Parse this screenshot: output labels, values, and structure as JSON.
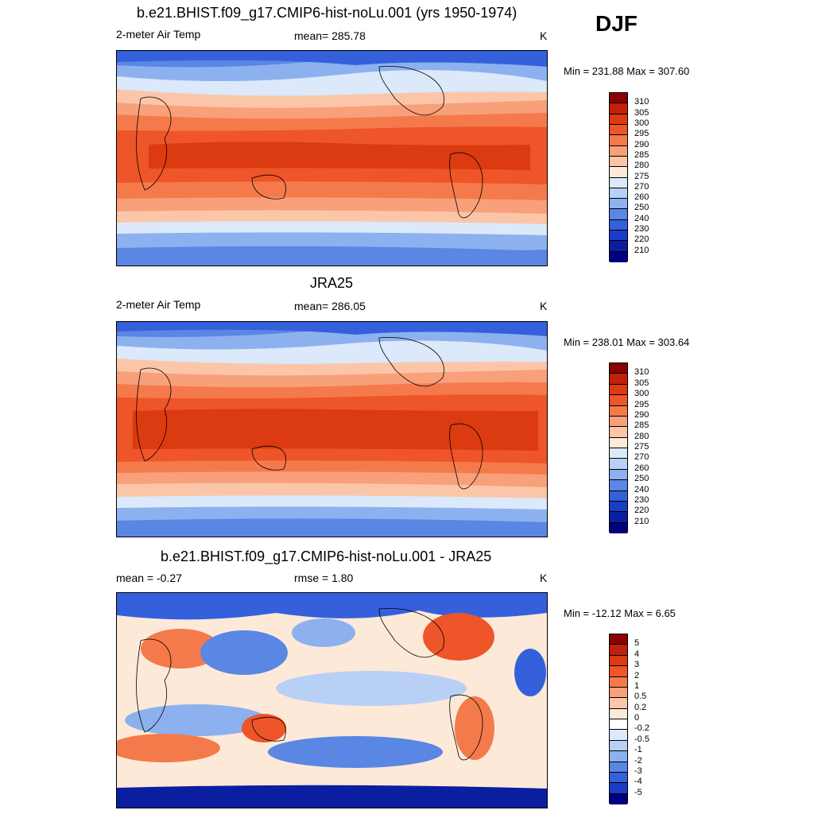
{
  "season": "DJF",
  "panels": [
    {
      "title": "b.e21.BHIST.f09_g17.CMIP6-hist-noLu.001 (yrs 1950-1974)",
      "left_label": "2-meter Air Temp",
      "center_label": "mean= 285.78",
      "right_label": "K",
      "minmax": "Min = 231.88 Max = 307.60",
      "type": "field"
    },
    {
      "title": "JRA25",
      "left_label": "2-meter Air Temp",
      "center_label": "mean= 286.05",
      "right_label": "K",
      "minmax": "Min = 238.01 Max = 303.64",
      "type": "field"
    },
    {
      "title": "b.e21.BHIST.f09_g17.CMIP6-hist-noLu.001 - JRA25",
      "left_label": "mean =  -0.27",
      "center_label": "rmse =   1.80",
      "right_label": "K",
      "minmax": "Min = -12.12 Max =   6.65",
      "type": "diff"
    }
  ],
  "colorbars": {
    "field": {
      "labels": [
        "310",
        "305",
        "300",
        "295",
        "290",
        "285",
        "280",
        "275",
        "270",
        "260",
        "250",
        "240",
        "230",
        "220",
        "210"
      ],
      "colors": [
        "#8b0000",
        "#c1200a",
        "#dc3a10",
        "#ee5528",
        "#f47a4c",
        "#f8a07a",
        "#fbc6a8",
        "#fde9d8",
        "#dbe9fb",
        "#b8d0f6",
        "#8cb1ee",
        "#5a86e4",
        "#3560dc",
        "#1a3cc8",
        "#0a1ea0",
        "#000080"
      ]
    },
    "diff": {
      "labels": [
        "5",
        "4",
        "3",
        "2",
        "1",
        "0.5",
        "0.2",
        "0",
        "-0.2",
        "-0.5",
        "-1",
        "-2",
        "-3",
        "-4",
        "-5"
      ],
      "colors": [
        "#8b0000",
        "#c1200a",
        "#dc3a10",
        "#ee5528",
        "#f47a4c",
        "#f8a07a",
        "#fbc6a8",
        "#fde9d8",
        "#ffffff",
        "#dbe9fb",
        "#b8d0f6",
        "#8cb1ee",
        "#5a86e4",
        "#3560dc",
        "#1a3cc8",
        "#000080"
      ]
    }
  }
}
